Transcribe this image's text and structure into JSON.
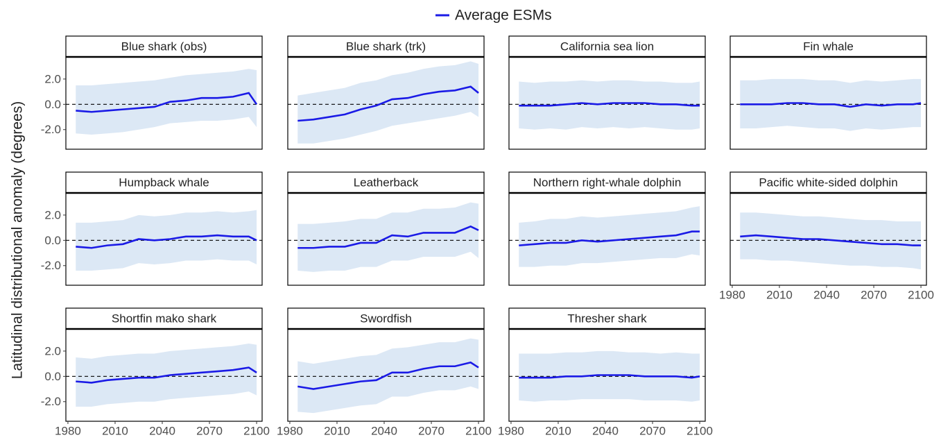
{
  "y_label": "Latitudinal distributional anomaly (degrees)",
  "chart_data": [
    {
      "type": "line",
      "title": "Blue shark (obs)",
      "x": [
        1985,
        1995,
        2005,
        2015,
        2025,
        2035,
        2045,
        2055,
        2065,
        2075,
        2085,
        2095,
        2100
      ],
      "series": [
        {
          "name": "Average ESMs",
          "color": "#1a1ae6",
          "values": [
            -0.5,
            -0.6,
            -0.5,
            -0.4,
            -0.3,
            -0.2,
            0.2,
            0.3,
            0.5,
            0.5,
            0.6,
            0.9,
            0.0
          ]
        }
      ],
      "band": {
        "color": "#dce8f5",
        "lower": [
          -2.3,
          -2.4,
          -2.3,
          -2.2,
          -2.0,
          -1.8,
          -1.5,
          -1.4,
          -1.3,
          -1.3,
          -1.2,
          -1.0,
          -1.8
        ],
        "upper": [
          1.5,
          1.5,
          1.6,
          1.7,
          1.8,
          1.9,
          2.1,
          2.3,
          2.4,
          2.5,
          2.6,
          2.8,
          2.7
        ]
      },
      "hline": 0,
      "xlim": [
        1978.7,
        2103.5
      ],
      "ylim": [
        -3.55,
        3.75
      ],
      "yticks": [
        {
          "value": 2,
          "label": "2.0"
        },
        {
          "value": 0,
          "label": "0.0"
        },
        {
          "value": -2,
          "label": "-2.0"
        }
      ]
    },
    {
      "type": "line",
      "title": "Blue shark (trk)",
      "x": [
        1985,
        1995,
        2005,
        2015,
        2025,
        2035,
        2045,
        2055,
        2065,
        2075,
        2085,
        2095,
        2100
      ],
      "series": [
        {
          "name": "Average ESMs",
          "color": "#1a1ae6",
          "values": [
            -1.3,
            -1.2,
            -1.0,
            -0.8,
            -0.4,
            -0.1,
            0.4,
            0.5,
            0.8,
            1.0,
            1.1,
            1.4,
            0.9
          ]
        }
      ],
      "band": {
        "color": "#dce8f5",
        "lower": [
          -3.1,
          -3.1,
          -2.9,
          -2.7,
          -2.4,
          -2.1,
          -1.7,
          -1.5,
          -1.3,
          -1.1,
          -0.9,
          -0.6,
          -1.0
        ],
        "upper": [
          0.7,
          0.9,
          1.1,
          1.3,
          1.7,
          1.9,
          2.3,
          2.5,
          2.8,
          3.0,
          3.1,
          3.4,
          3.2
        ]
      },
      "hline": 0,
      "xlim": [
        1978.7,
        2103.5
      ],
      "ylim": [
        -3.55,
        3.75
      ]
    },
    {
      "type": "line",
      "title": "California sea lion",
      "x": [
        1985,
        1995,
        2005,
        2015,
        2025,
        2035,
        2045,
        2055,
        2065,
        2075,
        2085,
        2095,
        2100
      ],
      "series": [
        {
          "name": "Average ESMs",
          "color": "#1a1ae6",
          "values": [
            -0.1,
            -0.1,
            -0.1,
            0.0,
            0.1,
            0.0,
            0.1,
            0.1,
            0.1,
            0.0,
            0.0,
            -0.1,
            -0.1
          ]
        }
      ],
      "band": {
        "color": "#dce8f5",
        "lower": [
          -1.9,
          -2.0,
          -1.9,
          -2.0,
          -1.8,
          -1.9,
          -1.8,
          -1.9,
          -1.8,
          -1.9,
          -2.0,
          -2.0,
          -1.9
        ],
        "upper": [
          1.8,
          1.7,
          1.8,
          1.8,
          1.9,
          1.8,
          1.9,
          1.9,
          1.8,
          1.8,
          1.7,
          1.7,
          1.8
        ]
      },
      "hline": 0,
      "xlim": [
        1978.7,
        2103.5
      ],
      "ylim": [
        -3.55,
        3.75
      ]
    },
    {
      "type": "line",
      "title": "Fin whale",
      "x": [
        1985,
        1995,
        2005,
        2015,
        2025,
        2035,
        2045,
        2055,
        2065,
        2075,
        2085,
        2095,
        2100
      ],
      "series": [
        {
          "name": "Average ESMs",
          "color": "#1a1ae6",
          "values": [
            0.0,
            0.0,
            0.0,
            0.1,
            0.1,
            0.0,
            0.0,
            -0.2,
            0.0,
            -0.1,
            0.0,
            0.0,
            0.1
          ]
        }
      ],
      "band": {
        "color": "#dce8f5",
        "lower": [
          -1.9,
          -1.9,
          -1.8,
          -1.7,
          -1.8,
          -1.9,
          -1.9,
          -2.1,
          -1.9,
          -2.0,
          -1.9,
          -1.8,
          -1.8
        ],
        "upper": [
          1.9,
          1.9,
          2.0,
          2.0,
          2.0,
          1.9,
          1.9,
          1.7,
          1.9,
          1.8,
          1.9,
          2.0,
          2.0
        ]
      },
      "hline": 0,
      "xlim": [
        1978.7,
        2103.5
      ],
      "ylim": [
        -3.55,
        3.75
      ]
    },
    {
      "type": "line",
      "title": "Humpback whale",
      "x": [
        1985,
        1995,
        2005,
        2015,
        2025,
        2035,
        2045,
        2055,
        2065,
        2075,
        2085,
        2095,
        2100
      ],
      "series": [
        {
          "name": "Average ESMs",
          "color": "#1a1ae6",
          "values": [
            -0.5,
            -0.6,
            -0.4,
            -0.3,
            0.1,
            0.0,
            0.1,
            0.3,
            0.3,
            0.4,
            0.3,
            0.3,
            0.0
          ]
        }
      ],
      "band": {
        "color": "#dce8f5",
        "lower": [
          -2.4,
          -2.4,
          -2.3,
          -2.2,
          -1.8,
          -1.9,
          -1.8,
          -1.6,
          -1.6,
          -1.5,
          -1.6,
          -1.6,
          -1.9
        ],
        "upper": [
          1.4,
          1.4,
          1.5,
          1.6,
          2.0,
          1.9,
          2.0,
          2.2,
          2.2,
          2.3,
          2.2,
          2.3,
          2.4
        ]
      },
      "hline": 0,
      "xlim": [
        1978.7,
        2103.5
      ],
      "ylim": [
        -3.55,
        3.75
      ],
      "yticks": [
        {
          "value": 2,
          "label": "2.0"
        },
        {
          "value": 0,
          "label": "0.0"
        },
        {
          "value": -2,
          "label": "-2.0"
        }
      ]
    },
    {
      "type": "line",
      "title": "Leatherback",
      "x": [
        1985,
        1995,
        2005,
        2015,
        2025,
        2035,
        2045,
        2055,
        2065,
        2075,
        2085,
        2095,
        2100
      ],
      "series": [
        {
          "name": "Average ESMs",
          "color": "#1a1ae6",
          "values": [
            -0.6,
            -0.6,
            -0.5,
            -0.5,
            -0.2,
            -0.2,
            0.4,
            0.3,
            0.6,
            0.6,
            0.6,
            1.1,
            0.8
          ]
        }
      ],
      "band": {
        "color": "#dce8f5",
        "lower": [
          -2.4,
          -2.5,
          -2.4,
          -2.4,
          -2.1,
          -2.1,
          -1.6,
          -1.6,
          -1.3,
          -1.3,
          -1.3,
          -0.9,
          -1.4
        ],
        "upper": [
          1.3,
          1.3,
          1.4,
          1.5,
          1.7,
          1.7,
          2.2,
          2.2,
          2.5,
          2.5,
          2.6,
          3.0,
          2.9
        ]
      },
      "hline": 0,
      "xlim": [
        1978.7,
        2103.5
      ],
      "ylim": [
        -3.55,
        3.75
      ]
    },
    {
      "type": "line",
      "title": "Northern right-whale dolphin",
      "x": [
        1985,
        1995,
        2005,
        2015,
        2025,
        2035,
        2045,
        2055,
        2065,
        2075,
        2085,
        2095,
        2100
      ],
      "series": [
        {
          "name": "Average ESMs",
          "color": "#1a1ae6",
          "values": [
            -0.4,
            -0.3,
            -0.2,
            -0.2,
            0.0,
            -0.1,
            0.0,
            0.1,
            0.2,
            0.3,
            0.4,
            0.7,
            0.7
          ]
        }
      ],
      "band": {
        "color": "#dce8f5",
        "lower": [
          -2.1,
          -2.1,
          -2.0,
          -2.0,
          -1.8,
          -1.8,
          -1.7,
          -1.6,
          -1.5,
          -1.4,
          -1.4,
          -1.1,
          -1.2
        ],
        "upper": [
          1.4,
          1.5,
          1.7,
          1.7,
          1.9,
          1.8,
          1.9,
          2.0,
          2.1,
          2.2,
          2.3,
          2.6,
          2.7
        ]
      },
      "hline": 0,
      "xlim": [
        1978.7,
        2103.5
      ],
      "ylim": [
        -3.55,
        3.75
      ]
    },
    {
      "type": "line",
      "title": "Pacific white-sided dolphin",
      "x": [
        1985,
        1995,
        2005,
        2015,
        2025,
        2035,
        2045,
        2055,
        2065,
        2075,
        2085,
        2095,
        2100
      ],
      "series": [
        {
          "name": "Average ESMs",
          "color": "#1a1ae6",
          "values": [
            0.3,
            0.4,
            0.3,
            0.2,
            0.1,
            0.1,
            0.0,
            -0.1,
            -0.2,
            -0.3,
            -0.3,
            -0.4,
            -0.4
          ]
        }
      ],
      "band": {
        "color": "#dce8f5",
        "lower": [
          -1.5,
          -1.5,
          -1.6,
          -1.6,
          -1.7,
          -1.8,
          -1.9,
          -2.0,
          -2.0,
          -2.1,
          -2.1,
          -2.2,
          -2.3
        ],
        "upper": [
          2.2,
          2.2,
          2.1,
          2.0,
          1.9,
          1.9,
          1.8,
          1.7,
          1.6,
          1.6,
          1.5,
          1.5,
          1.5
        ]
      },
      "hline": 0,
      "xlim": [
        1978.7,
        2103.5
      ],
      "ylim": [
        -3.55,
        3.75
      ],
      "xticks": [
        1980,
        2010,
        2040,
        2070,
        2100
      ]
    },
    {
      "type": "line",
      "title": "Shortfin mako shark",
      "x": [
        1985,
        1995,
        2005,
        2015,
        2025,
        2035,
        2045,
        2055,
        2065,
        2075,
        2085,
        2095,
        2100
      ],
      "series": [
        {
          "name": "Average ESMs",
          "color": "#1a1ae6",
          "values": [
            -0.4,
            -0.5,
            -0.3,
            -0.2,
            -0.1,
            -0.1,
            0.1,
            0.2,
            0.3,
            0.4,
            0.5,
            0.7,
            0.3
          ]
        }
      ],
      "band": {
        "color": "#dce8f5",
        "lower": [
          -2.4,
          -2.4,
          -2.2,
          -2.1,
          -2.0,
          -2.0,
          -1.8,
          -1.7,
          -1.6,
          -1.5,
          -1.4,
          -1.2,
          -1.5
        ],
        "upper": [
          1.5,
          1.4,
          1.6,
          1.7,
          1.8,
          1.8,
          2.0,
          2.1,
          2.2,
          2.3,
          2.4,
          2.6,
          2.5
        ]
      },
      "hline": 0,
      "xlim": [
        1978.7,
        2103.5
      ],
      "ylim": [
        -3.55,
        3.75
      ],
      "yticks": [
        {
          "value": 2,
          "label": "2.0"
        },
        {
          "value": 0,
          "label": "0.0"
        },
        {
          "value": -2,
          "label": "-2.0"
        }
      ],
      "xticks": [
        1980,
        2010,
        2040,
        2070,
        2100
      ]
    },
    {
      "type": "line",
      "title": "Swordfish",
      "x": [
        1985,
        1995,
        2005,
        2015,
        2025,
        2035,
        2045,
        2055,
        2065,
        2075,
        2085,
        2095,
        2100
      ],
      "series": [
        {
          "name": "Average ESMs",
          "color": "#1a1ae6",
          "values": [
            -0.8,
            -1.0,
            -0.8,
            -0.6,
            -0.4,
            -0.3,
            0.3,
            0.3,
            0.6,
            0.8,
            0.8,
            1.1,
            0.7
          ]
        }
      ],
      "band": {
        "color": "#dce8f5",
        "lower": [
          -2.8,
          -2.9,
          -2.7,
          -2.5,
          -2.3,
          -2.2,
          -1.6,
          -1.6,
          -1.3,
          -1.1,
          -1.1,
          -0.8,
          -1.0
        ],
        "upper": [
          1.2,
          1.0,
          1.2,
          1.4,
          1.6,
          1.7,
          2.2,
          2.3,
          2.5,
          2.7,
          2.7,
          3.0,
          2.9
        ]
      },
      "hline": 0,
      "xlim": [
        1978.7,
        2103.5
      ],
      "ylim": [
        -3.55,
        3.75
      ],
      "xticks": [
        1980,
        2010,
        2040,
        2070,
        2100
      ]
    },
    {
      "type": "line",
      "title": "Thresher shark",
      "x": [
        1985,
        1995,
        2005,
        2015,
        2025,
        2035,
        2045,
        2055,
        2065,
        2075,
        2085,
        2095,
        2100
      ],
      "series": [
        {
          "name": "Average ESMs",
          "color": "#1a1ae6",
          "values": [
            -0.1,
            -0.1,
            -0.1,
            0.0,
            0.0,
            0.1,
            0.1,
            0.1,
            0.0,
            0.0,
            0.0,
            -0.1,
            0.0
          ]
        }
      ],
      "band": {
        "color": "#dce8f5",
        "lower": [
          -1.9,
          -2.0,
          -1.9,
          -1.9,
          -1.8,
          -1.8,
          -1.8,
          -1.8,
          -1.9,
          -1.9,
          -1.9,
          -2.0,
          -1.9
        ],
        "upper": [
          1.8,
          1.8,
          1.8,
          1.9,
          1.9,
          2.0,
          2.0,
          1.9,
          1.9,
          1.8,
          1.9,
          1.8,
          1.8
        ]
      },
      "hline": 0,
      "xlim": [
        1978.7,
        2103.5
      ],
      "ylim": [
        -3.55,
        3.75
      ],
      "xticks": [
        1980,
        2010,
        2040,
        2070,
        2100
      ]
    }
  ]
}
